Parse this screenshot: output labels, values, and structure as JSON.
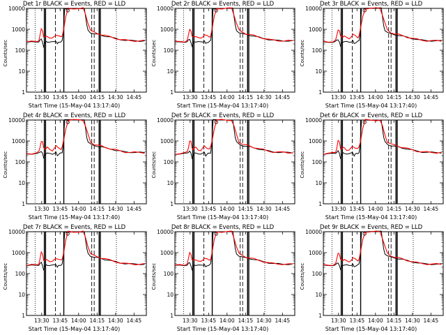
{
  "figure": {
    "layout": "3x3"
  },
  "chart_data": [
    {
      "type": "line",
      "title": "Det 1r  BLACK = Events, RED = LLD",
      "xlabel": "Start Time (15-May-04 13:17:40)",
      "ylabel": "Counts/sec",
      "yscale": "log",
      "ylim": [
        1,
        10000
      ],
      "xlim": [
        "13:17:40",
        "14:55:00"
      ],
      "x_ticks": [
        "13:30",
        "13:45",
        "14:00",
        "14:15",
        "14:30",
        "14:45"
      ],
      "y_ticks": [
        1,
        10,
        100,
        1000,
        10000
      ],
      "y_tick_labels": [
        "1",
        "10",
        "100",
        "1000",
        "10000"
      ],
      "series": [
        {
          "name": "Events",
          "color": "#000000"
        },
        {
          "name": "LLD",
          "color": "#ff0000"
        }
      ]
    },
    {
      "type": "line",
      "title": "Det 2r  BLACK = Events, RED = LLD",
      "xlabel": "Start Time (15-May-04 13:17:40)",
      "ylabel": "Counts/sec",
      "yscale": "log",
      "ylim": [
        1,
        10000
      ],
      "xlim": [
        "13:17:40",
        "14:55:00"
      ],
      "x_ticks": [
        "13:30",
        "13:45",
        "14:00",
        "14:15",
        "14:30",
        "14:45"
      ],
      "y_ticks": [
        1,
        10,
        100,
        1000,
        10000
      ],
      "y_tick_labels": [
        "1",
        "10",
        "100",
        "1000",
        "10000"
      ],
      "series": [
        {
          "name": "Events",
          "color": "#000000"
        },
        {
          "name": "LLD",
          "color": "#ff0000"
        }
      ]
    },
    {
      "type": "line",
      "title": "Det 3r  BLACK = Events, RED = LLD",
      "xlabel": "Start Time (15-May-04 13:17:40)",
      "ylabel": "Counts/sec",
      "yscale": "log",
      "ylim": [
        1,
        10000
      ],
      "xlim": [
        "13:17:40",
        "14:55:00"
      ],
      "x_ticks": [
        "13:30",
        "13:45",
        "14:00",
        "14:15",
        "14:30",
        "14:45"
      ],
      "y_ticks": [
        1,
        10,
        100,
        1000,
        10000
      ],
      "y_tick_labels": [
        "1",
        "10",
        "100",
        "1000",
        "10000"
      ],
      "series": [
        {
          "name": "Events",
          "color": "#000000"
        },
        {
          "name": "LLD",
          "color": "#ff0000"
        }
      ]
    },
    {
      "type": "line",
      "title": "Det 4r  BLACK = Events, RED = LLD",
      "xlabel": "Start Time (15-May-04 13:17:40)",
      "ylabel": "Counts/sec",
      "yscale": "log",
      "ylim": [
        1,
        10000
      ],
      "xlim": [
        "13:17:40",
        "14:55:00"
      ],
      "x_ticks": [
        "13:30",
        "13:45",
        "14:00",
        "14:15",
        "14:30",
        "14:45"
      ],
      "y_ticks": [
        1,
        10,
        100,
        1000,
        10000
      ],
      "y_tick_labels": [
        "1",
        "10",
        "100",
        "1000",
        "10000"
      ],
      "series": [
        {
          "name": "Events",
          "color": "#000000"
        },
        {
          "name": "LLD",
          "color": "#ff0000"
        }
      ]
    },
    {
      "type": "line",
      "title": "Det 5r  BLACK = Events, RED = LLD",
      "xlabel": "Start Time (15-May-04 13:17:40)",
      "ylabel": "Counts/sec",
      "yscale": "log",
      "ylim": [
        1,
        10000
      ],
      "xlim": [
        "13:17:40",
        "14:55:00"
      ],
      "x_ticks": [
        "13:30",
        "13:45",
        "14:00",
        "14:15",
        "14:30",
        "14:45"
      ],
      "y_ticks": [
        1,
        10,
        100,
        1000,
        10000
      ],
      "y_tick_labels": [
        "1",
        "10",
        "100",
        "1000",
        "10000"
      ],
      "series": [
        {
          "name": "Events",
          "color": "#000000"
        },
        {
          "name": "LLD",
          "color": "#ff0000"
        }
      ]
    },
    {
      "type": "line",
      "title": "Det 6r  BLACK = Events, RED = LLD",
      "xlabel": "Start Time (15-May-04 13:17:40)",
      "ylabel": "Counts/sec",
      "yscale": "log",
      "ylim": [
        1,
        10000
      ],
      "xlim": [
        "13:17:40",
        "14:55:00"
      ],
      "x_ticks": [
        "13:30",
        "13:45",
        "14:00",
        "14:15",
        "14:30",
        "14:45"
      ],
      "y_ticks": [
        1,
        10,
        100,
        1000,
        10000
      ],
      "y_tick_labels": [
        "1",
        "10",
        "100",
        "1000",
        "10000"
      ],
      "series": [
        {
          "name": "Events",
          "color": "#000000"
        },
        {
          "name": "LLD",
          "color": "#ff0000"
        }
      ]
    },
    {
      "type": "line",
      "title": "Det 7r  BLACK = Events, RED = LLD",
      "xlabel": "Start Time (15-May-04 13:17:40)",
      "ylabel": "Counts/sec",
      "yscale": "log",
      "ylim": [
        1,
        10000
      ],
      "xlim": [
        "13:17:40",
        "14:55:00"
      ],
      "x_ticks": [
        "13:30",
        "13:45",
        "14:00",
        "14:15",
        "14:30",
        "14:45"
      ],
      "y_ticks": [
        1,
        10,
        100,
        1000,
        10000
      ],
      "y_tick_labels": [
        "1",
        "10",
        "100",
        "1000",
        "10000"
      ],
      "series": [
        {
          "name": "Events",
          "color": "#000000"
        },
        {
          "name": "LLD",
          "color": "#ff0000"
        }
      ]
    },
    {
      "type": "line",
      "title": "Det 8r  BLACK = Events, RED = LLD",
      "xlabel": "Start Time (15-May-04 13:17:40)",
      "ylabel": "Counts/sec",
      "yscale": "log",
      "ylim": [
        1,
        10000
      ],
      "xlim": [
        "13:17:40",
        "14:55:00"
      ],
      "x_ticks": [
        "13:30",
        "13:45",
        "14:00",
        "14:15",
        "14:30",
        "14:45"
      ],
      "y_ticks": [
        1,
        10,
        100,
        1000,
        10000
      ],
      "y_tick_labels": [
        "1",
        "10",
        "100",
        "1000",
        "10000"
      ],
      "series": [
        {
          "name": "Events",
          "color": "#000000"
        },
        {
          "name": "LLD",
          "color": "#ff0000"
        }
      ]
    },
    {
      "type": "line",
      "title": "Det 9r  BLACK = Events, RED = LLD",
      "xlabel": "Start Time (15-May-04 13:17:40)",
      "ylabel": "Counts/sec",
      "yscale": "log",
      "ylim": [
        1,
        10000
      ],
      "xlim": [
        "13:17:40",
        "14:55:00"
      ],
      "x_ticks": [
        "13:30",
        "13:45",
        "14:00",
        "14:15",
        "14:30",
        "14:45"
      ],
      "y_ticks": [
        1,
        10,
        100,
        1000,
        10000
      ],
      "y_tick_labels": [
        "1",
        "10",
        "100",
        "1000",
        "10000"
      ],
      "series": [
        {
          "name": "Events",
          "color": "#000000"
        },
        {
          "name": "LLD",
          "color": "#ff0000"
        }
      ]
    }
  ]
}
